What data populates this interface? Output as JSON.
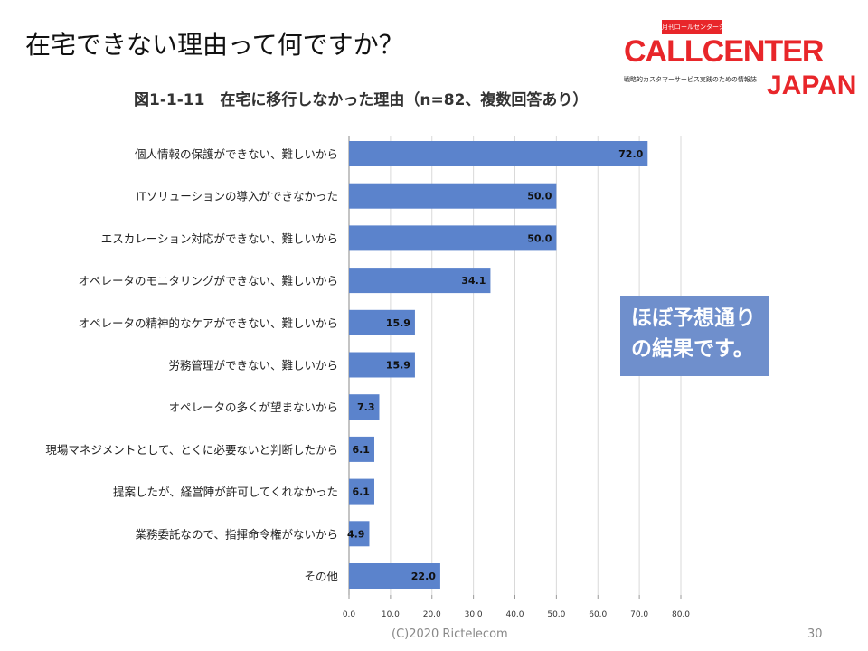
{
  "slide_title": "在宅できない理由って何ですか？",
  "logo": {
    "top": "月刊コールセンタージャパン",
    "main": "CALLCENTER",
    "sub": "戦略的カスタマーサービス実践のための情報誌",
    "japan": "JAPAN"
  },
  "callout": {
    "line1": "ほぼ予想通り",
    "line2": "の結果です。"
  },
  "footer": "(C)2020 Rictelecom",
  "page_number": "30",
  "chart_data": {
    "type": "bar",
    "orientation": "horizontal",
    "title": "図1-1-11　在宅に移行しなかった理由（n=82、複数回答あり）",
    "categories": [
      "個人情報の保護ができない、難しいから",
      "ITソリューションの導入ができなかった",
      "エスカレーション対応ができない、難しいから",
      "オペレータのモニタリングができない、難しいから",
      "オペレータの精神的なケアができない、難しいから",
      "労務管理ができない、難しいから",
      "オペレータの多くが望まないから",
      "現場マネジメントとして、とくに必要ないと判断したから",
      "提案したが、経営陣が許可してくれなかった",
      "業務委託なので、指揮命令権がないから",
      "その他"
    ],
    "values": [
      72.0,
      50.0,
      50.0,
      34.1,
      15.9,
      15.9,
      7.3,
      6.1,
      6.1,
      4.9,
      22.0
    ],
    "data_labels": [
      "72.0",
      "50.0",
      "50.0",
      "34.1",
      "15.9",
      "15.9",
      "7.3",
      "6.1",
      "6.1",
      "4.9",
      "22.0"
    ],
    "xlim": [
      0,
      80
    ],
    "ticks": [
      "0.0",
      "10.0",
      "20.0",
      "30.0",
      "40.0",
      "50.0",
      "60.0",
      "70.0",
      "80.0"
    ],
    "grid": true,
    "bar_color": "#5b83cc"
  }
}
